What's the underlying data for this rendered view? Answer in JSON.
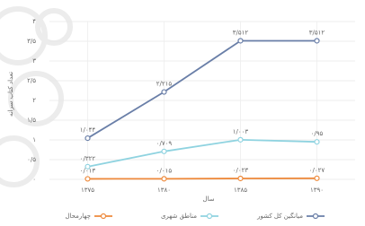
{
  "chart_data": {
    "type": "line",
    "y_label": "تعداد کتاب سرانه",
    "x_label": "سال",
    "categories": [
      "۱۳۷۵",
      "۱۳۸۰",
      "۱۳۸۵",
      "۱۳۹۰"
    ],
    "series": [
      {
        "name": "میانگین کل کشور",
        "color": "#6a7fa8",
        "values": [
          1.044,
          2.215,
          3.512,
          3.512
        ],
        "value_labels": [
          "۱/۰۴۴",
          "۲/۲۱۵",
          "۳/۵۱۲",
          "۳/۵۱۲"
        ]
      },
      {
        "name": "مناطق شهری",
        "color": "#8fd3e0",
        "values": [
          0.322,
          0.709,
          1.003,
          0.95
        ],
        "value_labels": [
          "۰/۳۲۲",
          "۰/۷۰۹",
          "۱/۰۰۳",
          "۰/۹۵"
        ]
      },
      {
        "name": "چهارمحال",
        "color": "#ee8a3c",
        "values": [
          0.013,
          0.015,
          0.023,
          0.027
        ],
        "value_labels": [
          "۰/۰۱۳",
          "۰/۰۱۵",
          "۰/۰۲۳",
          "۰/۰۲۷"
        ]
      }
    ],
    "ylim": [
      0,
      4
    ],
    "yticks": [
      {
        "value": 0,
        "label": "۰"
      },
      {
        "value": 0.5,
        "label": "۰/۵"
      },
      {
        "value": 1,
        "label": "۱"
      },
      {
        "value": 1.5,
        "label": "۱/۵"
      },
      {
        "value": 2,
        "label": "۲"
      },
      {
        "value": 2.5,
        "label": "۲/۵"
      },
      {
        "value": 3,
        "label": "۳"
      },
      {
        "value": 3.5,
        "label": "۳/۵"
      },
      {
        "value": 4,
        "label": "۴"
      }
    ],
    "grid": true
  }
}
